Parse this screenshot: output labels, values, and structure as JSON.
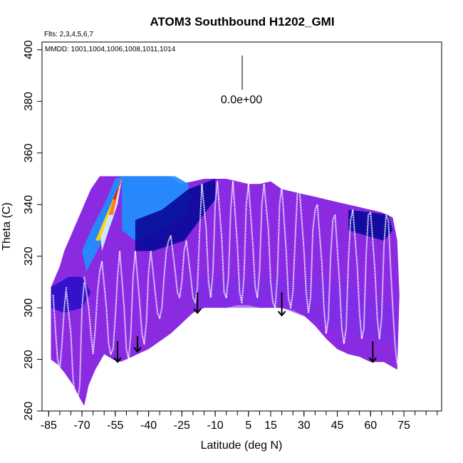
{
  "chart_data": {
    "type": "heatmap",
    "title": "ATOM3 Southbound H1202_GMI",
    "flights_note": "Flts: 2,3,4,5,6,7",
    "dates_note": "MMDD: 1001,1004,1006,1008,1011,1014",
    "xlabel": "Latitude (deg N)",
    "ylabel": "Theta (C)",
    "xlim": [
      -88,
      92
    ],
    "ylim": [
      260,
      403
    ],
    "xticks": [
      -85,
      -70,
      -55,
      -40,
      -25,
      -10,
      5,
      15,
      30,
      45,
      60,
      75
    ],
    "yticks": [
      260,
      280,
      300,
      320,
      340,
      360,
      380,
      400
    ],
    "colorbar_value_label": "0.0e+00",
    "colors": {
      "background_field": "#8a2be2",
      "field_mid": "#7b2fe8",
      "field_deep": "#2c10c8",
      "navy": "#0a0a9a",
      "cyan": "#1e90ff",
      "light": "#dbeeff",
      "yellow": "#ffd400",
      "orange": "#ff7a00",
      "red": "#e00000",
      "trace": "#ffffff",
      "arrow": "#000000"
    },
    "envelope": {
      "lat": [
        -84,
        -82,
        -80,
        -78,
        -75,
        -72,
        -70,
        -68,
        -66,
        -62,
        -58,
        -56,
        -53,
        -50,
        -48,
        -45,
        -42,
        -38,
        -34,
        -30,
        -26,
        -20,
        -15,
        -10,
        -5,
        0,
        5,
        10,
        15,
        20,
        25,
        30,
        35,
        40,
        45,
        50,
        55,
        60,
        65,
        70,
        72,
        73,
        72,
        70,
        66,
        60,
        55,
        50,
        45,
        40,
        35,
        30,
        25,
        20,
        15,
        10,
        5,
        0,
        -5,
        -10,
        -15,
        -20,
        -25,
        -30,
        -35,
        -40,
        -45,
        -50,
        -53,
        -56,
        -60,
        -64,
        -67,
        -69,
        -71,
        -74,
        -78,
        -81,
        -84
      ],
      "theta": [
        308,
        312,
        316,
        322,
        328,
        334,
        338,
        342,
        346,
        351,
        351,
        351,
        351,
        351,
        351,
        351,
        351,
        351,
        351,
        351,
        348,
        349,
        350,
        350,
        350,
        349,
        348,
        348,
        349,
        346,
        345,
        344,
        343,
        342,
        341,
        340,
        339,
        338,
        337,
        335,
        326,
        305,
        276,
        277,
        279,
        279,
        281,
        282,
        284,
        288,
        293,
        297,
        299,
        300,
        300,
        300,
        301,
        301,
        300,
        300,
        300,
        298,
        294,
        290,
        287,
        284,
        282,
        280,
        279,
        280,
        282,
        276,
        270,
        262,
        265,
        270,
        275,
        278,
        280
      ]
    },
    "high_patches": [
      {
        "lat": [
          -70,
          -66,
          -60,
          -55,
          -52,
          -56,
          -62,
          -68
        ],
        "theta": [
          322,
          330,
          340,
          350,
          351,
          334,
          324,
          314
        ],
        "color": "cyan"
      },
      {
        "lat": [
          -62,
          -58,
          -55,
          -52,
          -54,
          -58,
          -61
        ],
        "theta": [
          330,
          338,
          344,
          350,
          340,
          330,
          322
        ],
        "color": "light"
      },
      {
        "lat": [
          -64,
          -60,
          -57,
          -55,
          -58,
          -62
        ],
        "theta": [
          326,
          334,
          340,
          345,
          336,
          326
        ],
        "color": "yellow"
      },
      {
        "lat": [
          -58,
          -56,
          -54,
          -52,
          -54,
          -56
        ],
        "theta": [
          336,
          342,
          346,
          351,
          344,
          336
        ],
        "color": "orange"
      },
      {
        "lat": [
          -56,
          -54,
          -52,
          -50,
          -53,
          -55
        ],
        "theta": [
          342,
          346,
          349,
          351,
          348,
          342
        ],
        "color": "red"
      },
      {
        "lat": [
          -52,
          -40,
          -28,
          -22,
          -22,
          -34,
          -46,
          -52
        ],
        "theta": [
          351,
          351,
          351,
          348,
          338,
          330,
          326,
          330
        ],
        "color": "cyan"
      },
      {
        "lat": [
          -46,
          -34,
          -22,
          -10,
          -10,
          -24,
          -38,
          -46
        ],
        "theta": [
          334,
          338,
          346,
          350,
          342,
          326,
          322,
          322
        ],
        "color": "navy"
      },
      {
        "lat": [
          50,
          60,
          68,
          70,
          66,
          58,
          50
        ],
        "theta": [
          338,
          337,
          336,
          330,
          326,
          328,
          330
        ],
        "color": "navy"
      },
      {
        "lat": [
          -84,
          -76,
          -70,
          -66,
          -70,
          -78,
          -84
        ],
        "theta": [
          308,
          312,
          312,
          306,
          300,
          298,
          300
        ],
        "color": "field_deep"
      }
    ],
    "traces": [
      {
        "lat": [
          -83,
          -82,
          -81,
          -80,
          -79,
          -78,
          -77
        ],
        "theta": [
          305,
          292,
          280,
          276,
          286,
          300,
          308
        ]
      },
      {
        "lat": [
          -77,
          -75,
          -74,
          -73,
          -72,
          -71,
          -70,
          -69
        ],
        "theta": [
          306,
          290,
          272,
          266,
          264,
          270,
          300,
          310
        ]
      },
      {
        "lat": [
          -69,
          -67,
          -66,
          -65,
          -64,
          -63,
          -62,
          -61
        ],
        "theta": [
          312,
          300,
          290,
          282,
          292,
          306,
          314,
          318
        ]
      },
      {
        "lat": [
          -61,
          -59,
          -58,
          -57,
          -56,
          -55,
          -54,
          -53
        ],
        "theta": [
          318,
          300,
          286,
          282,
          284,
          296,
          312,
          322
        ]
      },
      {
        "lat": [
          -53,
          -51,
          -50,
          -49,
          -48,
          -47,
          -46
        ],
        "theta": [
          322,
          300,
          284,
          280,
          290,
          312,
          322
        ]
      },
      {
        "lat": [
          -46,
          -44,
          -43,
          -42,
          -41,
          -40,
          -39
        ],
        "theta": [
          322,
          302,
          290,
          286,
          294,
          314,
          322
        ]
      },
      {
        "lat": [
          -39,
          -37,
          -36,
          -35,
          -34,
          -33,
          -32,
          -31,
          -30
        ],
        "theta": [
          322,
          306,
          298,
          296,
          300,
          312,
          322,
          326,
          328
        ]
      },
      {
        "lat": [
          -30,
          -28,
          -27,
          -26,
          -25,
          -24,
          -23
        ],
        "theta": [
          328,
          314,
          306,
          304,
          310,
          322,
          326
        ]
      },
      {
        "lat": [
          -23,
          -21,
          -20,
          -19,
          -18,
          -17,
          -16
        ],
        "theta": [
          326,
          312,
          304,
          302,
          308,
          330,
          348
        ]
      },
      {
        "lat": [
          -16,
          -14,
          -13,
          -12,
          -11,
          -10,
          -9
        ],
        "theta": [
          348,
          330,
          310,
          304,
          314,
          340,
          349
        ]
      },
      {
        "lat": [
          -9,
          -7,
          -6,
          -5,
          -4,
          -3,
          -2
        ],
        "theta": [
          349,
          326,
          306,
          304,
          312,
          338,
          349
        ]
      },
      {
        "lat": [
          -2,
          0,
          1,
          2,
          3,
          4,
          5
        ],
        "theta": [
          349,
          324,
          306,
          302,
          312,
          340,
          348
        ]
      },
      {
        "lat": [
          5,
          7,
          8,
          9,
          10,
          11,
          12
        ],
        "theta": [
          348,
          324,
          308,
          304,
          314,
          340,
          348
        ]
      },
      {
        "lat": [
          12,
          14,
          15,
          16,
          17,
          18,
          19,
          20
        ],
        "theta": [
          348,
          330,
          310,
          302,
          300,
          312,
          340,
          347
        ]
      },
      {
        "lat": [
          20,
          22,
          23,
          24,
          25,
          26,
          27,
          28
        ],
        "theta": [
          347,
          322,
          304,
          300,
          306,
          326,
          344,
          346
        ]
      },
      {
        "lat": [
          28,
          30,
          31,
          32,
          33,
          34,
          35,
          36
        ],
        "theta": [
          346,
          322,
          306,
          298,
          304,
          330,
          338,
          340
        ]
      },
      {
        "lat": [
          36,
          38,
          39,
          40,
          41,
          42,
          43,
          44
        ],
        "theta": [
          340,
          318,
          300,
          290,
          296,
          320,
          334,
          336
        ]
      },
      {
        "lat": [
          44,
          46,
          47,
          48,
          49,
          50,
          51,
          52
        ],
        "theta": [
          336,
          310,
          292,
          286,
          292,
          318,
          334,
          338
        ]
      },
      {
        "lat": [
          52,
          54,
          55,
          56,
          57,
          58,
          59,
          60
        ],
        "theta": [
          338,
          316,
          298,
          288,
          292,
          320,
          336,
          337
        ]
      },
      {
        "lat": [
          60,
          62,
          63,
          64,
          65,
          66,
          67,
          68
        ],
        "theta": [
          337,
          314,
          296,
          288,
          296,
          324,
          336,
          334
        ]
      },
      {
        "lat": [
          68,
          69,
          70,
          71,
          72
        ],
        "theta": [
          334,
          316,
          300,
          286,
          278
        ]
      }
    ],
    "arrows": [
      {
        "lat": -54,
        "theta_top": 287,
        "theta_tip": 279
      },
      {
        "lat": -45,
        "theta_top": 289,
        "theta_tip": 283
      },
      {
        "lat": -18,
        "theta_top": 306,
        "theta_tip": 298
      },
      {
        "lat": 20,
        "theta_top": 306,
        "theta_tip": 297
      },
      {
        "lat": 61,
        "theta_top": 287,
        "theta_tip": 279
      }
    ]
  }
}
